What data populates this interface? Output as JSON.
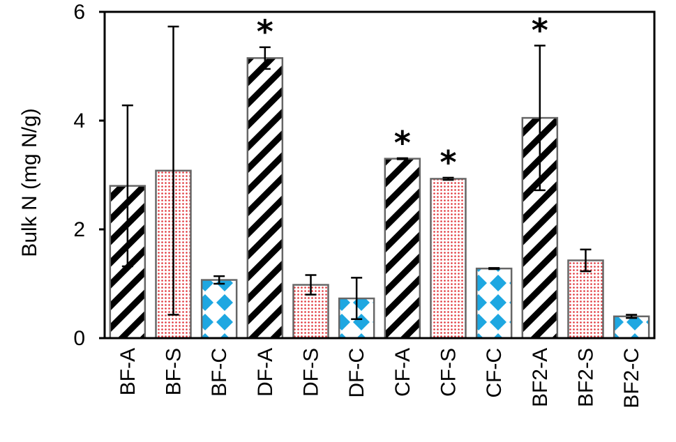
{
  "chart_data": {
    "type": "bar",
    "ylabel": "Bulk N (mg N/g)",
    "xlabel": "",
    "ylim": [
      0,
      6
    ],
    "yticks": [
      0,
      2,
      4,
      6
    ],
    "grid": false,
    "categories": [
      "BF-A",
      "BF-S",
      "BF-C",
      "DF-A",
      "DF-S",
      "DF-C",
      "CF-A",
      "CF-S",
      "CF-C",
      "BF2-A",
      "BF2-S",
      "BF2-C"
    ],
    "values": [
      2.8,
      3.08,
      1.07,
      5.15,
      0.98,
      0.73,
      3.3,
      2.93,
      1.28,
      4.05,
      1.43,
      0.4
    ],
    "error": [
      1.48,
      2.65,
      0.07,
      0.2,
      0.18,
      0.38,
      0.01,
      0.02,
      0.01,
      1.33,
      0.2,
      0.03
    ],
    "significant": [
      false,
      false,
      false,
      true,
      false,
      false,
      true,
      true,
      false,
      true,
      false,
      false
    ],
    "significance_marker": "*",
    "patterns": [
      "diagonal",
      "dots",
      "diamonds",
      "diagonal",
      "dots",
      "diamonds",
      "diagonal",
      "dots",
      "diamonds",
      "diagonal",
      "dots",
      "diamonds"
    ],
    "colors": {
      "diagonal": "#000000",
      "dots": "#e0353a",
      "diamonds": "#1ea7e1",
      "bar_border": "#666666",
      "axis": "#000000"
    }
  }
}
